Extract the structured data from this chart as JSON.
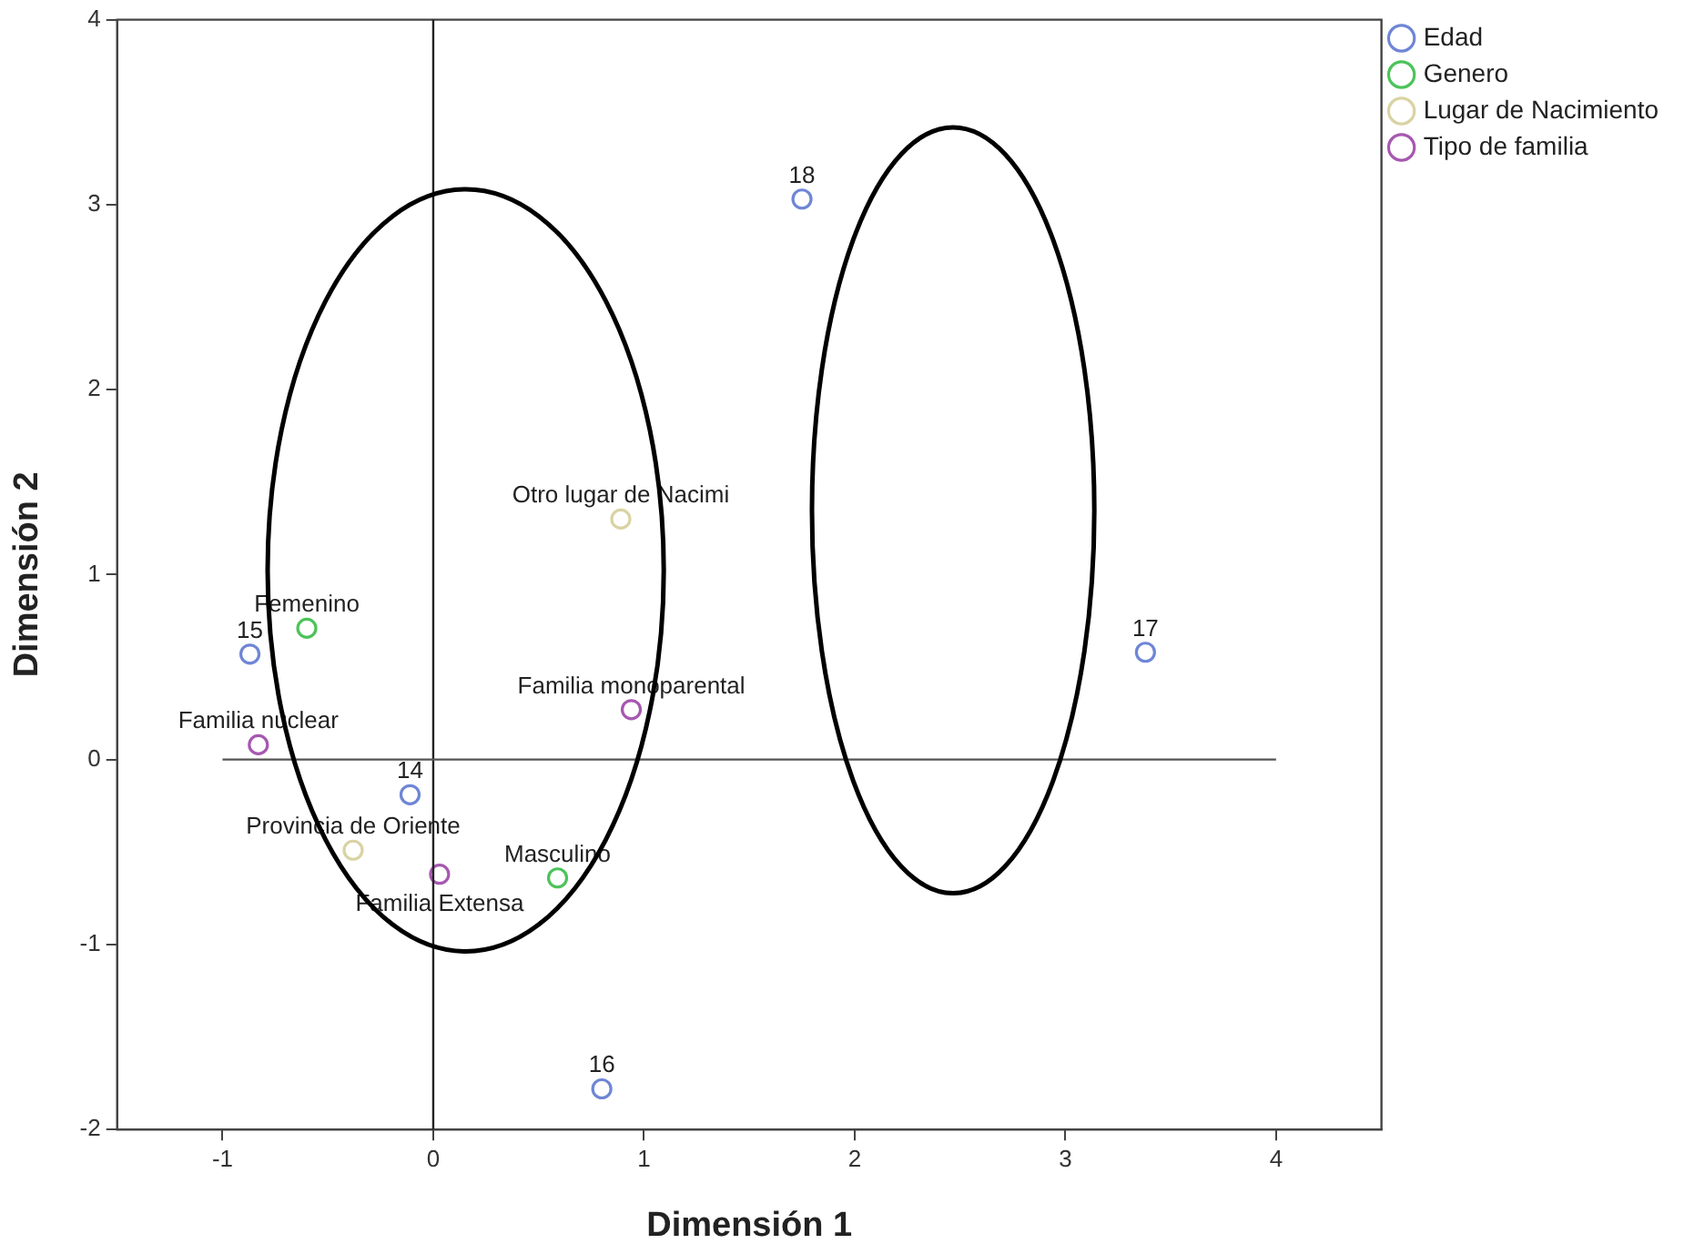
{
  "chart_data": {
    "type": "scatter",
    "xlabel": "Dimensión 1",
    "ylabel": "Dimensión 2",
    "xlim": [
      -1.5,
      4.5
    ],
    "xticks": [
      -1,
      0,
      1,
      2,
      3,
      4
    ],
    "ylim": [
      -2,
      4
    ],
    "yticks": [
      -2,
      -1,
      0,
      1,
      2,
      3,
      4
    ],
    "grid": false,
    "legend": "top right",
    "marker": "circle",
    "series": [
      {
        "name": "Edad",
        "color": "#6f86d6",
        "x": [
          -0.87,
          -0.11,
          0.8,
          3.38,
          1.75
        ],
        "values": [
          0.57,
          -0.19,
          -1.78,
          0.58,
          3.03
        ]
      },
      {
        "name": "Genero",
        "color": "#4cc35a",
        "x": [
          -0.6,
          0.59
        ],
        "values": [
          0.71,
          -0.64
        ]
      },
      {
        "name": "Lugar de Nacimiento",
        "color": "#d9d3a3",
        "x": [
          0.89,
          -0.38
        ],
        "values": [
          1.3,
          -0.49
        ]
      },
      {
        "name": "Tipo de familia",
        "color": "#a658b0",
        "x": [
          -0.83,
          0.94,
          0.03
        ],
        "values": [
          0.08,
          0.27,
          -0.62
        ]
      }
    ],
    "ref_lines": [
      {
        "axis": "x",
        "value": 0,
        "color": "#222222"
      },
      {
        "axis": "y",
        "value": 0,
        "color": "#555555"
      }
    ],
    "annotations": [
      {
        "text": "15",
        "x": -0.87,
        "y": 0.57
      },
      {
        "text": "14",
        "x": -0.11,
        "y": -0.19
      },
      {
        "text": "16",
        "x": 0.8,
        "y": -1.78
      },
      {
        "text": "17",
        "x": 3.38,
        "y": 0.58
      },
      {
        "text": "18",
        "x": 1.75,
        "y": 3.03
      },
      {
        "text": "Femenino",
        "x": -0.6,
        "y": 0.71
      },
      {
        "text": "Masculino",
        "x": 0.59,
        "y": -0.64
      },
      {
        "text": "Otro lugar de Nacimi",
        "x": 0.89,
        "y": 1.3
      },
      {
        "text": "Provincia de Oriente",
        "x": -0.38,
        "y": -0.49
      },
      {
        "text": "Familia nuclear",
        "x": -0.83,
        "y": 0.08
      },
      {
        "text": "Familia monoparental",
        "x": 0.94,
        "y": 0.27
      },
      {
        "text": "Familia Extensa",
        "x": 0.03,
        "y": -0.62
      }
    ]
  }
}
